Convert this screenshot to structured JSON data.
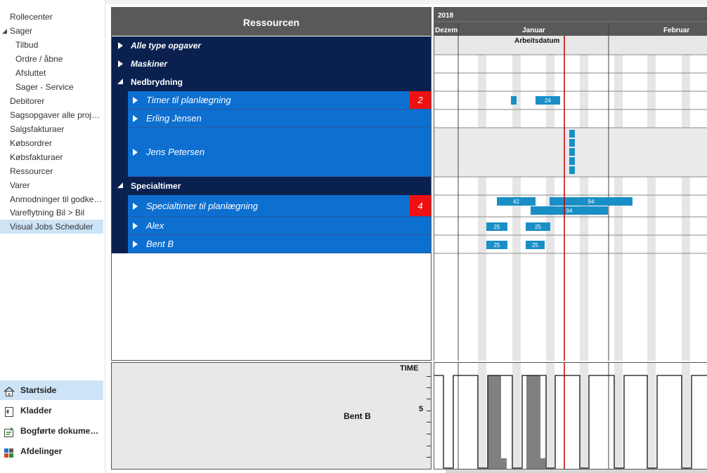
{
  "nav": {
    "items": [
      {
        "label": "Rollecenter"
      },
      {
        "label": "Sager",
        "arrow": "◢"
      },
      {
        "label": "Tilbud"
      },
      {
        "label": "Ordre / åbne"
      },
      {
        "label": "Afsluttet"
      },
      {
        "label": "Sager - Service"
      },
      {
        "label": "Debitorer"
      },
      {
        "label": "Sagsopgaver alle projekter"
      },
      {
        "label": "Salgsfakturaer"
      },
      {
        "label": "Købsordrer"
      },
      {
        "label": "Købsfakturaer"
      },
      {
        "label": "Ressourcer"
      },
      {
        "label": "Varer"
      },
      {
        "label": "Anmodninger til godkendelse"
      },
      {
        "label": "Vareflytning Bil > Bil"
      },
      {
        "label": "Visual Jobs Scheduler"
      }
    ],
    "bottom": [
      {
        "label": "Startside",
        "icon": "home-icon"
      },
      {
        "label": "Kladder",
        "icon": "journal-icon"
      },
      {
        "label": "Bogførte dokumenter",
        "icon": "posted-documents-icon"
      },
      {
        "label": "Afdelinger",
        "icon": "departments-icon"
      }
    ]
  },
  "resources": {
    "header": "Ressourcen",
    "rows": [
      {
        "label": "Alle type opgaver",
        "kind": "group",
        "expanded": false,
        "italic": true
      },
      {
        "label": "Maskiner",
        "kind": "group",
        "expanded": false,
        "italic": true
      },
      {
        "label": "Nedbrydning",
        "kind": "group",
        "expanded": true
      },
      {
        "label": "Timer til planlægning",
        "kind": "child",
        "badge": "2"
      },
      {
        "label": "Erling Jensen",
        "kind": "child"
      },
      {
        "label": "Jens Petersen",
        "kind": "child"
      },
      {
        "label": "Specialtimer",
        "kind": "group",
        "expanded": true
      },
      {
        "label": "Specialtimer til planlægning",
        "kind": "child",
        "badge": "4"
      },
      {
        "label": "Alex",
        "kind": "child"
      },
      {
        "label": "Bent B",
        "kind": "child"
      }
    ]
  },
  "gantt": {
    "year": "2018",
    "months": [
      "Dezem",
      "Januar",
      "Februar"
    ],
    "workdate_label": "Arbeitsdatum",
    "bars": [
      {
        "row": 3,
        "label": ""
      },
      {
        "row": 3,
        "label": "24"
      },
      {
        "row": 5,
        "label": ""
      },
      {
        "row": 7,
        "label": "42"
      },
      {
        "row": 7,
        "label": "94"
      },
      {
        "row": 7,
        "label": "94"
      },
      {
        "row": 8,
        "label": "25"
      },
      {
        "row": 8,
        "label": "25"
      },
      {
        "row": 9,
        "label": "25"
      },
      {
        "row": 9,
        "label": "25"
      }
    ]
  },
  "capacity": {
    "resource": "Bent B",
    "axis_title": "TIME",
    "axis_tick": "5"
  },
  "colors": {
    "group_bg": "#0a2150",
    "child_bg": "#0d6fd0",
    "badge": "#ee1111",
    "bar": "#1a8fc7",
    "workdate_line": "#c00000",
    "selected_nav": "#cde4f7"
  }
}
